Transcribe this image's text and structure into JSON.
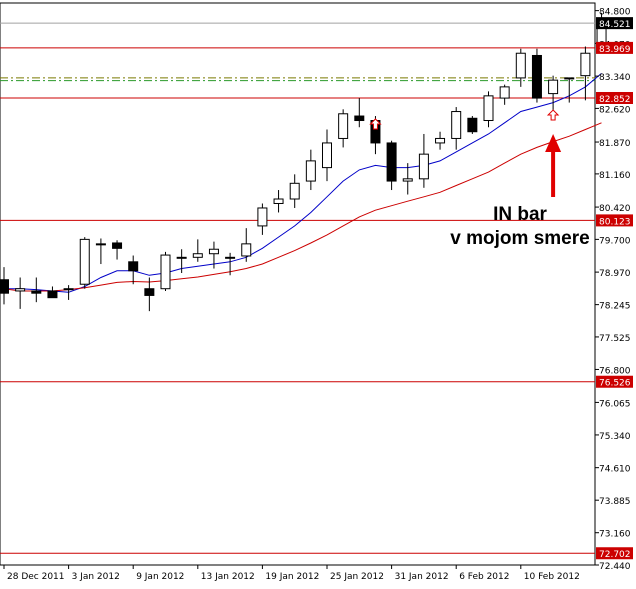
{
  "chart_data": {
    "type": "candlestick",
    "x_tick_labels": [
      "28 Dec 2011",
      "3 Jan 2012",
      "9 Jan 2012",
      "13 Jan 2012",
      "19 Jan 2012",
      "25 Jan 2012",
      "31 Jan 2012",
      "6 Feb 2012",
      "10 Feb 2012"
    ],
    "x_tick_bar_index": [
      0,
      4,
      8,
      12,
      16,
      20,
      24,
      28,
      32
    ],
    "y_ticks": [
      72.44,
      73.16,
      73.885,
      74.61,
      75.34,
      76.065,
      76.8,
      77.525,
      78.245,
      78.97,
      79.7,
      80.42,
      81.16,
      81.87,
      82.62,
      83.34,
      84.07,
      84.8
    ],
    "y_tick_labels": [
      "72.440",
      "73.160",
      "73.885",
      "74.610",
      "75.340",
      "76.065",
      "76.800",
      "77.525",
      "78.245",
      "78.970",
      "79.700",
      "80.420",
      "81.160",
      "81.870",
      "82.620",
      "83.340",
      "84.070",
      "84.800"
    ],
    "ylim": [
      72.44,
      84.97
    ],
    "candles": [
      {
        "o": 78.8,
        "h": 79.08,
        "l": 78.25,
        "c": 78.5
      },
      {
        "o": 78.55,
        "h": 78.85,
        "l": 78.15,
        "c": 78.6
      },
      {
        "o": 78.55,
        "h": 78.85,
        "l": 78.3,
        "c": 78.5
      },
      {
        "o": 78.55,
        "h": 78.65,
        "l": 78.4,
        "c": 78.4
      },
      {
        "o": 78.6,
        "h": 78.68,
        "l": 78.35,
        "c": 78.58
      },
      {
        "o": 78.7,
        "h": 79.75,
        "l": 78.6,
        "c": 79.7
      },
      {
        "o": 79.6,
        "h": 79.72,
        "l": 79.15,
        "c": 79.6
      },
      {
        "o": 79.62,
        "h": 79.68,
        "l": 79.25,
        "c": 79.5
      },
      {
        "o": 79.2,
        "h": 79.34,
        "l": 78.7,
        "c": 79.0
      },
      {
        "o": 78.6,
        "h": 78.85,
        "l": 78.1,
        "c": 78.45
      },
      {
        "o": 78.6,
        "h": 79.42,
        "l": 78.55,
        "c": 79.35
      },
      {
        "o": 79.3,
        "h": 79.48,
        "l": 78.95,
        "c": 79.3
      },
      {
        "o": 79.3,
        "h": 79.7,
        "l": 79.2,
        "c": 79.38
      },
      {
        "o": 79.38,
        "h": 79.65,
        "l": 79.05,
        "c": 79.48
      },
      {
        "o": 79.28,
        "h": 79.4,
        "l": 78.9,
        "c": 79.3
      },
      {
        "o": 79.33,
        "h": 79.95,
        "l": 79.2,
        "c": 79.6
      },
      {
        "o": 80.0,
        "h": 80.5,
        "l": 79.8,
        "c": 80.4
      },
      {
        "o": 80.5,
        "h": 80.8,
        "l": 80.3,
        "c": 80.6
      },
      {
        "o": 80.6,
        "h": 81.15,
        "l": 80.4,
        "c": 80.95
      },
      {
        "o": 81.0,
        "h": 81.7,
        "l": 80.8,
        "c": 81.45
      },
      {
        "o": 81.3,
        "h": 82.15,
        "l": 81.0,
        "c": 81.85
      },
      {
        "o": 81.95,
        "h": 82.6,
        "l": 81.75,
        "c": 82.5
      },
      {
        "o": 82.45,
        "h": 82.85,
        "l": 82.2,
        "c": 82.35
      },
      {
        "o": 82.35,
        "h": 82.45,
        "l": 81.6,
        "c": 81.85
      },
      {
        "o": 81.85,
        "h": 81.9,
        "l": 80.8,
        "c": 81.0
      },
      {
        "o": 81.0,
        "h": 81.4,
        "l": 80.7,
        "c": 81.05
      },
      {
        "o": 81.05,
        "h": 82.05,
        "l": 80.85,
        "c": 81.6
      },
      {
        "o": 81.85,
        "h": 82.1,
        "l": 81.7,
        "c": 81.95
      },
      {
        "o": 81.95,
        "h": 82.65,
        "l": 81.7,
        "c": 82.55
      },
      {
        "o": 82.4,
        "h": 82.45,
        "l": 82.05,
        "c": 82.1
      },
      {
        "o": 82.35,
        "h": 83.0,
        "l": 82.2,
        "c": 82.9
      },
      {
        "o": 82.85,
        "h": 83.15,
        "l": 82.7,
        "c": 83.1
      },
      {
        "o": 83.3,
        "h": 83.95,
        "l": 83.1,
        "c": 83.85
      },
      {
        "o": 83.8,
        "h": 83.95,
        "l": 82.75,
        "c": 82.85
      },
      {
        "o": 82.95,
        "h": 83.35,
        "l": 82.55,
        "c": 83.25
      },
      {
        "o": 83.3,
        "h": 83.3,
        "l": 82.75,
        "c": 83.3
      },
      {
        "o": 83.35,
        "h": 84.0,
        "l": 82.8,
        "c": 83.85
      },
      {
        "o": 83.95,
        "h": 84.75,
        "l": 83.9,
        "c": 84.6
      }
    ],
    "moving_averages": [
      {
        "color": "#0000c8",
        "values": [
          78.6,
          78.6,
          78.58,
          78.55,
          78.52,
          78.65,
          78.85,
          79.0,
          79.0,
          78.9,
          78.95,
          79.05,
          79.1,
          79.15,
          79.2,
          79.3,
          79.5,
          79.75,
          80.0,
          80.3,
          80.65,
          81.0,
          81.25,
          81.35,
          81.3,
          81.3,
          81.35,
          81.45,
          81.65,
          81.85,
          82.05,
          82.3,
          82.55,
          82.65,
          82.75,
          82.9,
          83.1,
          83.4
        ]
      },
      {
        "color": "#cc0000",
        "values": [
          78.6,
          78.55,
          78.55,
          78.55,
          78.58,
          78.62,
          78.68,
          78.74,
          78.76,
          78.75,
          78.78,
          78.82,
          78.86,
          78.92,
          78.98,
          79.05,
          79.15,
          79.3,
          79.45,
          79.62,
          79.8,
          80.0,
          80.2,
          80.35,
          80.45,
          80.55,
          80.65,
          80.75,
          80.9,
          81.05,
          81.2,
          81.4,
          81.6,
          81.75,
          81.88,
          82.0,
          82.15,
          82.3
        ]
      }
    ],
    "horizontal_levels": [
      {
        "label": "83.969",
        "value": 83.969,
        "color": "#cc0000"
      },
      {
        "label": "82.852",
        "value": 82.852,
        "color": "#cc0000"
      },
      {
        "label": "80.123",
        "value": 80.123,
        "color": "#cc0000"
      },
      {
        "label": "76.526",
        "value": 76.526,
        "color": "#cc0000"
      },
      {
        "label": "72.702",
        "value": 72.702,
        "color": "#cc0000"
      }
    ],
    "dashed_levels": [
      {
        "value": 83.3,
        "color": "#7a7a00"
      },
      {
        "value": 83.24,
        "color": "#2a9a2a"
      }
    ],
    "current_price": {
      "label": "84.521",
      "value": 84.521
    },
    "up_fractals": [
      {
        "bar": 23,
        "value": 82.25
      },
      {
        "bar": 34,
        "value": 82.45
      }
    ],
    "annotation": {
      "line1": "IN bar",
      "line2": "v mojom smere",
      "color": "#e00000",
      "points_to_bar": 34
    },
    "grid": false
  }
}
